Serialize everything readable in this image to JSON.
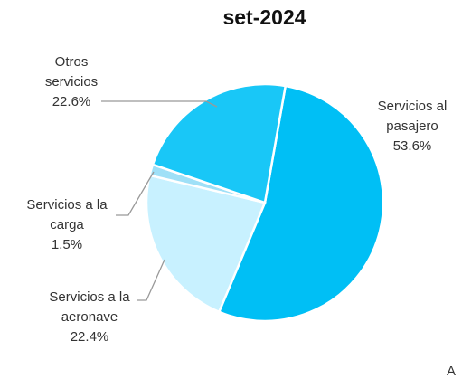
{
  "chart_data": {
    "type": "pie",
    "title": "set-2024",
    "categories": [
      "Servicios al pasajero",
      "Servicios a la aeronave",
      "Servicios a la carga",
      "Otros servicios"
    ],
    "values": [
      53.6,
      22.4,
      1.5,
      22.6
    ],
    "value_labels": [
      "53.6%",
      "22.4%",
      "1.5%",
      "22.6%"
    ],
    "colors": [
      "#00bff5",
      "#c8f1ff",
      "#9fe0f7",
      "#19c7f7"
    ],
    "annotations": [
      "A"
    ]
  }
}
